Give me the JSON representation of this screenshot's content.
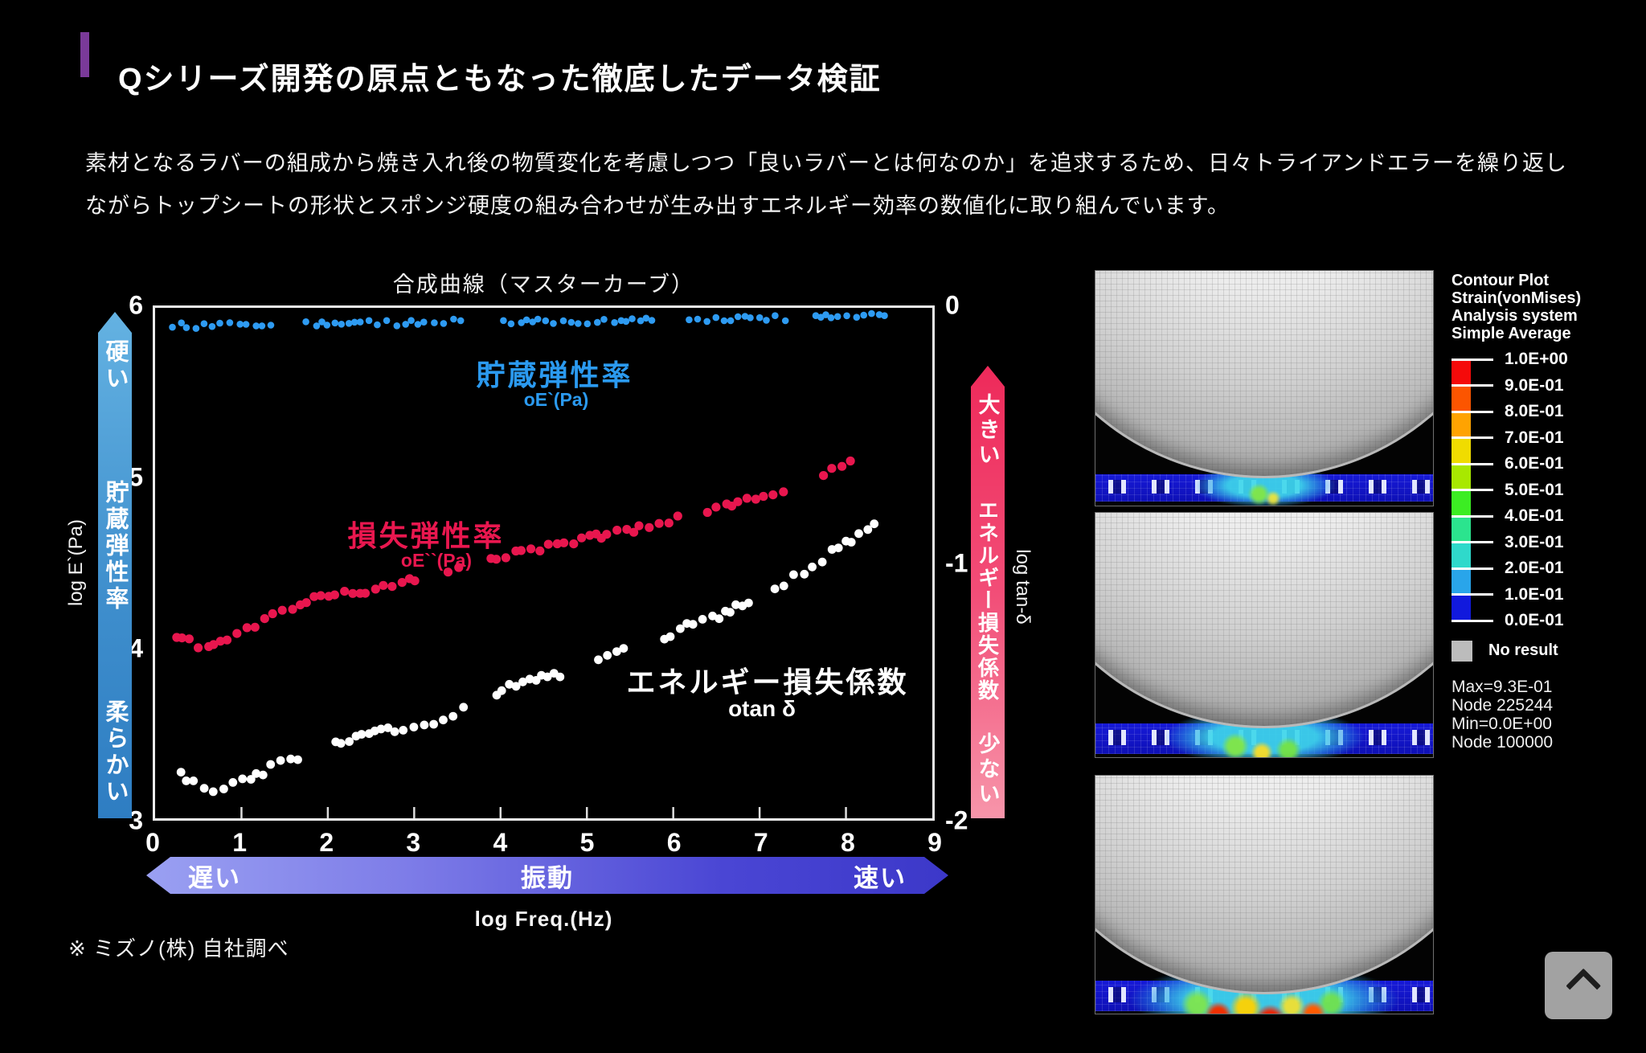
{
  "header": {
    "title": "Qシリーズ開発の原点ともなった徹底したデータ検証",
    "accent_color": "#7a3a99"
  },
  "intro": {
    "text": "素材となるラバーの組成から焼き入れ後の物質変化を考慮しつつ「良いラバーとは何なのか」を追求するため、日々トライアンドエラーを繰り返しながらトップシートの形状とスポンジ硬度の組み合わせが生み出すエネルギー効率の数値化に取り組んでいます。"
  },
  "chart": {
    "title": "合成曲線（マスターカーブ）",
    "left_axis": {
      "label": "log E`(Pa)",
      "ticks": [
        "6",
        "5",
        "4",
        "3"
      ]
    },
    "right_axis": {
      "label": "log tan-δ",
      "ticks": [
        "0",
        "-1",
        "-2"
      ]
    },
    "x_axis": {
      "label": "log Freq.(Hz)",
      "ticks": [
        "0",
        "1",
        "2",
        "3",
        "4",
        "5",
        "6",
        "7",
        "8",
        "9"
      ]
    },
    "left_bar": {
      "top": "硬い",
      "middle": "貯蔵弾性率",
      "bottom": "柔らかい",
      "color_top": "#64b2e2",
      "color_bottom": "#2e7dc2"
    },
    "right_bar": {
      "top": "大きい",
      "middle": "エネルギー損失係数",
      "bottom": "少ない",
      "color_top": "#ee2a5a",
      "color_bottom": "#f795aa"
    },
    "series_labels": {
      "storage": {
        "title": "貯蔵弾性率",
        "sub": "oE`(Pa)",
        "color": "#2b9af0"
      },
      "loss": {
        "title": "損失弾性率",
        "sub": "oE``(Pa)",
        "color": "#e9174f"
      },
      "tand": {
        "title": "エネルギー損失係数",
        "sub": "otan δ",
        "color": "#ffffff"
      }
    },
    "banner": {
      "left": "遅い",
      "center": "振動",
      "right": "速い"
    }
  },
  "chart_data": {
    "type": "scatter",
    "title": "合成曲線（マスターカーブ）",
    "xlabel": "log Freq.(Hz)",
    "ylabel_left": "log E`(Pa)",
    "ylabel_right": "log tan-δ",
    "x_range": [
      0,
      9
    ],
    "left_axis_range": [
      3,
      6
    ],
    "right_axis_range": [
      -2,
      0
    ],
    "grid": false,
    "series": [
      {
        "name": "貯蔵弾性率 oE`(Pa)",
        "axis": "left",
        "color": "#2e9bf2",
        "dot_r": 4.3,
        "jitter": 0.016,
        "x": [
          0.2,
          0.5,
          1,
          1.5,
          2,
          2.5,
          3,
          3.5,
          4,
          4.5,
          5,
          5.5,
          6,
          6.5,
          7,
          7.5,
          8,
          8.45
        ],
        "y": [
          5.9,
          5.89,
          5.9,
          5.9,
          5.91,
          5.91,
          5.91,
          5.92,
          5.92,
          5.92,
          5.92,
          5.93,
          5.93,
          5.93,
          5.94,
          5.94,
          5.95,
          5.96
        ]
      },
      {
        "name": "損失弾性率 oE``(Pa)",
        "axis": "left",
        "color": "#e8164e",
        "dot_r": 5.6,
        "jitter": 0.022,
        "x": [
          0.25,
          0.5,
          0.75,
          1,
          1.5,
          2,
          2.5,
          3,
          3.25,
          3.5,
          4,
          4.5,
          5,
          5.5,
          6,
          6.5,
          7,
          7.5,
          8,
          8.4
        ],
        "y": [
          4.07,
          4.02,
          4.04,
          4.11,
          4.22,
          4.31,
          4.33,
          4.4,
          4.42,
          4.47,
          4.53,
          4.59,
          4.64,
          4.69,
          4.76,
          4.81,
          4.88,
          4.96,
          5.08,
          5.18
        ]
      },
      {
        "name": "エネルギー損失係数 otan δ",
        "axis": "right",
        "color": "#ffffff",
        "dot_r": 5.4,
        "jitter": 0.016,
        "x": [
          0.3,
          0.55,
          0.8,
          1,
          1.5,
          2,
          2.5,
          3,
          3.3,
          3.6,
          4,
          4.5,
          5,
          5.5,
          6,
          6.5,
          7,
          7.5,
          8,
          8.4
        ],
        "y": [
          -1.83,
          -1.89,
          -1.9,
          -1.85,
          -1.78,
          -1.72,
          -1.67,
          -1.64,
          -1.62,
          -1.57,
          -1.5,
          -1.45,
          -1.4,
          -1.34,
          -1.27,
          -1.21,
          -1.13,
          -1.04,
          -0.92,
          -0.82
        ]
      }
    ]
  },
  "footnote": "※ ミズノ(株) 自社調べ",
  "fea": {
    "legend_header": [
      "Contour Plot",
      "Strain(vonMises)",
      "Analysis system",
      "Simple Average"
    ],
    "scale_labels": [
      "1.0E+00",
      "9.0E-01",
      "8.0E-01",
      "7.0E-01",
      "6.0E-01",
      "5.0E-01",
      "4.0E-01",
      "3.0E-01",
      "2.0E-01",
      "1.0E-01",
      "0.0E-01"
    ],
    "scale_colors": [
      "#f50a0a",
      "#fc5500",
      "#ffa301",
      "#f0dc00",
      "#a8e800",
      "#3ced23",
      "#2be48e",
      "#2fd9cb",
      "#29a5ea",
      "#1119dd"
    ],
    "no_result": "No result",
    "stats": [
      "Max=9.3E-01",
      "Node 225244",
      "Min=0.0E+00",
      "Node 100000"
    ]
  },
  "scroll_top": {
    "icon": "chevron-up"
  }
}
